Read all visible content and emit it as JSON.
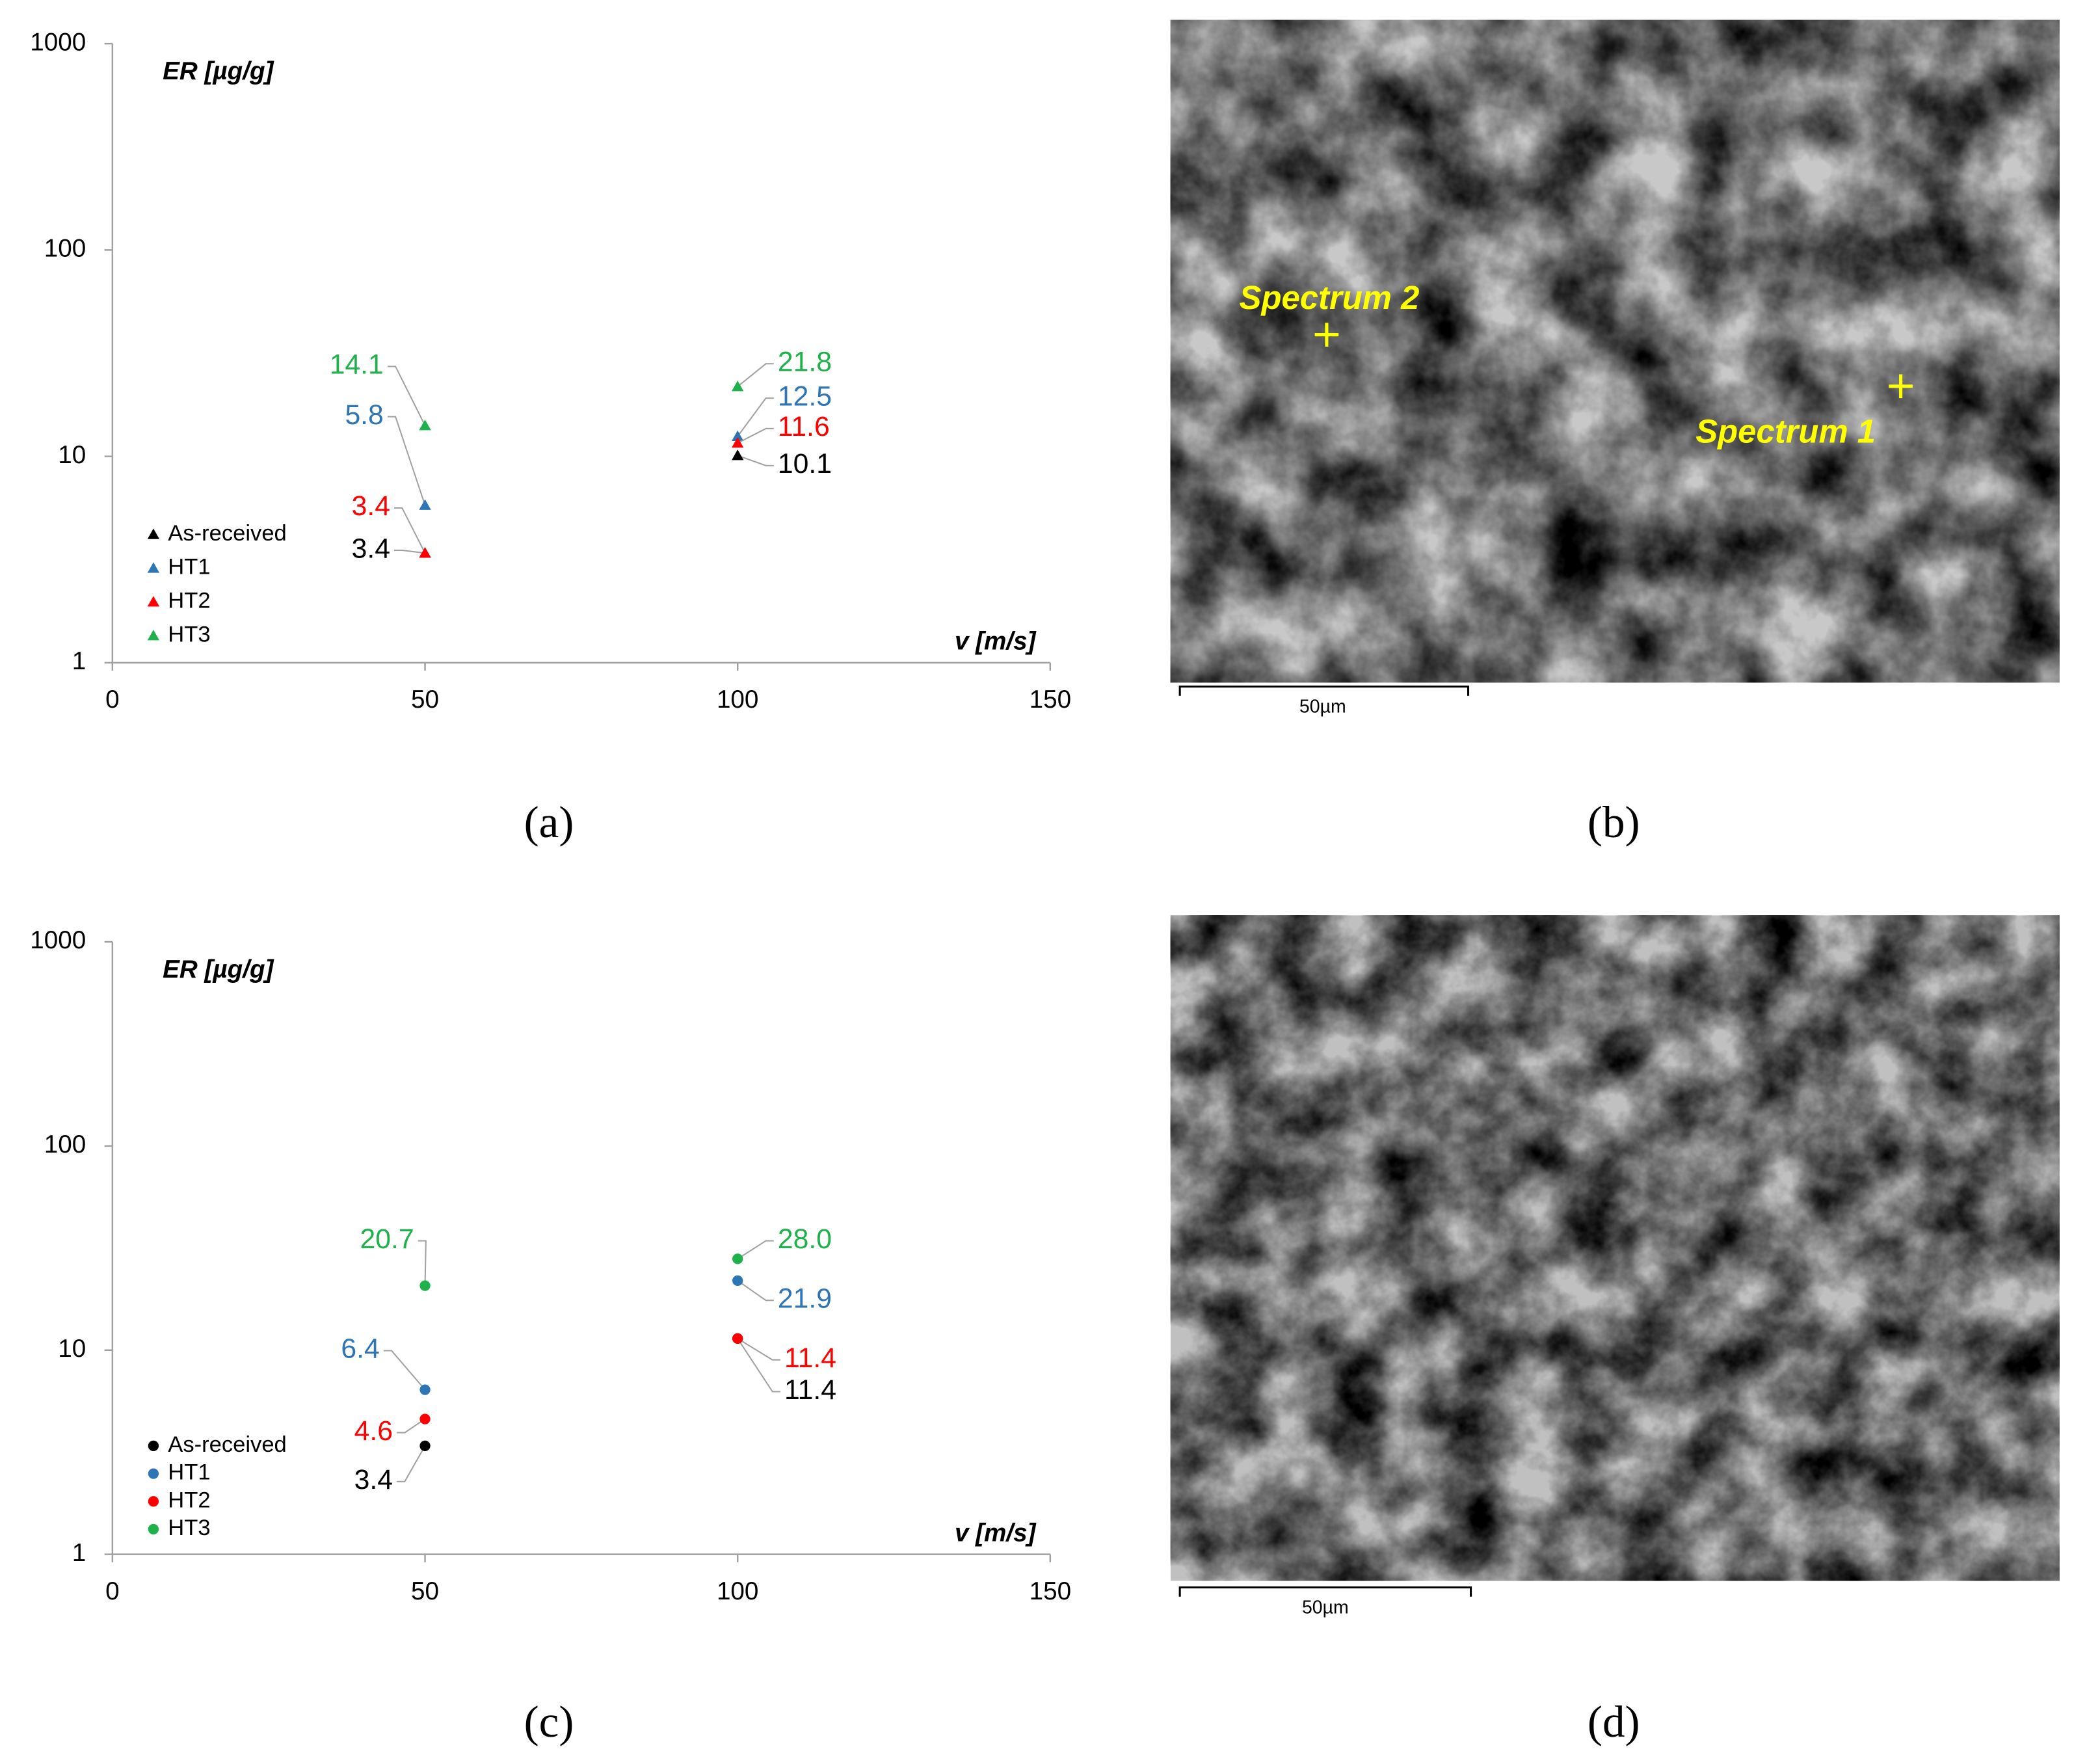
{
  "chart_data": [
    {
      "type": "scatter",
      "marker": "triangle",
      "ylabel": "ER [µg/g]",
      "xlabel": "v [m/s]",
      "x": [
        50,
        100
      ],
      "xlim": [
        0,
        150
      ],
      "xticks": [
        0,
        50,
        100,
        150
      ],
      "ylim": [
        1,
        1000
      ],
      "yticks": [
        1,
        10,
        100,
        1000
      ],
      "log_y": true,
      "legend": "lower left",
      "series": [
        {
          "name": "As-received",
          "color": "#000000",
          "values": [
            3.4,
            10.1
          ]
        },
        {
          "name": "HT1",
          "color": "#2e75b6",
          "values": [
            5.8,
            12.5
          ]
        },
        {
          "name": "HT2",
          "color": "#ff0000",
          "values": [
            3.4,
            11.6
          ]
        },
        {
          "name": "HT3",
          "color": "#1fb24a",
          "values": [
            14.1,
            21.8
          ]
        }
      ]
    },
    {
      "type": "scatter",
      "marker": "circle",
      "ylabel": "ER [µg/g]",
      "xlabel": "v [m/s]",
      "x": [
        50,
        100
      ],
      "xlim": [
        0,
        150
      ],
      "xticks": [
        0,
        50,
        100,
        150
      ],
      "ylim": [
        1,
        1000
      ],
      "yticks": [
        1,
        10,
        100,
        1000
      ],
      "log_y": true,
      "legend": "lower left",
      "series": [
        {
          "name": "As-received",
          "color": "#000000",
          "values": [
            3.4,
            11.4
          ]
        },
        {
          "name": "HT1",
          "color": "#2e75b6",
          "values": [
            6.4,
            21.9
          ]
        },
        {
          "name": "HT2",
          "color": "#ff0000",
          "values": [
            4.6,
            11.4
          ]
        },
        {
          "name": "HT3",
          "color": "#1fb24a",
          "values": [
            20.7,
            28.0
          ],
          "value_labels": [
            "20.7",
            "28.0"
          ]
        }
      ]
    }
  ],
  "panel_labels": [
    "(a)",
    "(b)",
    "(c)",
    "(d)"
  ],
  "images": [
    {
      "annotations": [
        "Spectrum 2",
        "Spectrum 1"
      ],
      "scale_bar": "50µm"
    },
    {
      "scale_bar": "50µm"
    }
  ]
}
